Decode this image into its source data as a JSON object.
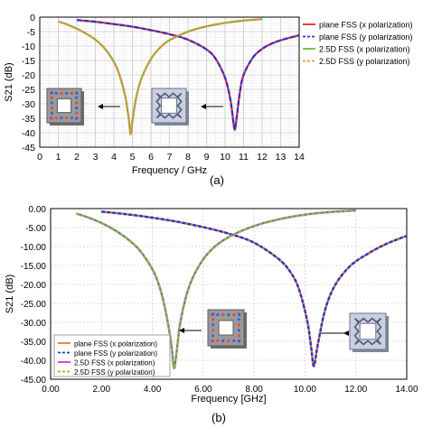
{
  "figure": {
    "caption_a": "(a)",
    "caption_b": "(b)"
  },
  "chart_data": [
    {
      "type": "line",
      "panel": "a",
      "title": "",
      "xlabel": "Frequency / GHz",
      "ylabel": "S21 (dB)",
      "xlim": [
        0,
        14
      ],
      "ylim": [
        -45,
        0
      ],
      "xticks": [
        "0",
        "1",
        "2",
        "3",
        "4",
        "5",
        "6",
        "7",
        "8",
        "9",
        "10",
        "11",
        "12",
        "13",
        "14"
      ],
      "yticks": [
        "0",
        "-5",
        "-10",
        "-15",
        "-20",
        "-25",
        "-30",
        "-35",
        "-40",
        "-45"
      ],
      "grid": true,
      "legend_position": "right",
      "annotations": [
        "2.5D FSS unit cell inset with arrow",
        "plane FSS unit cell inset with arrow"
      ],
      "series": [
        {
          "name": "plane FSS (x polarization)",
          "color": "#e8242a",
          "dash": "solid",
          "x": [
            2.0,
            3.0,
            4.0,
            5.0,
            6.0,
            7.0,
            8.0,
            9.0,
            9.5,
            10.0,
            10.3,
            10.5,
            10.6,
            10.8,
            11.0,
            11.5,
            12.0,
            12.5,
            13.0,
            13.5,
            14.0
          ],
          "y": [
            -1.0,
            -1.6,
            -2.4,
            -3.3,
            -4.5,
            -5.9,
            -7.8,
            -11.2,
            -14.5,
            -21.0,
            -29.0,
            -38.5,
            -36.0,
            -26.0,
            -20.0,
            -14.0,
            -11.0,
            -9.2,
            -8.0,
            -7.1,
            -6.3
          ]
        },
        {
          "name": "plane FSS (y polarization)",
          "color": "#2035d8",
          "dash": "dashed",
          "x": [
            2.0,
            3.0,
            4.0,
            5.0,
            6.0,
            7.0,
            8.0,
            9.0,
            9.5,
            10.0,
            10.3,
            10.5,
            10.6,
            10.8,
            11.0,
            11.5,
            12.0,
            12.5,
            13.0,
            13.5,
            14.0
          ],
          "y": [
            -1.0,
            -1.6,
            -2.4,
            -3.3,
            -4.5,
            -5.9,
            -7.8,
            -11.2,
            -14.5,
            -21.0,
            -29.0,
            -38.5,
            -36.0,
            -26.0,
            -20.0,
            -14.0,
            -11.0,
            -9.2,
            -8.0,
            -7.1,
            -6.3
          ]
        },
        {
          "name": "2.5D FSS (x polarization)",
          "color": "#5fc23a",
          "dash": "solid",
          "x": [
            1.0,
            1.5,
            2.0,
            2.5,
            3.0,
            3.5,
            4.0,
            4.3,
            4.6,
            4.8,
            4.9,
            5.0,
            5.2,
            5.5,
            6.0,
            6.5,
            7.0,
            8.0,
            9.0,
            10.0,
            11.0,
            12.0
          ],
          "y": [
            -1.5,
            -2.6,
            -4.0,
            -5.7,
            -7.8,
            -10.8,
            -15.5,
            -20.0,
            -27.0,
            -35.0,
            -40.5,
            -36.0,
            -28.0,
            -21.0,
            -14.5,
            -10.5,
            -8.0,
            -5.0,
            -3.2,
            -2.0,
            -1.2,
            -0.7
          ]
        },
        {
          "name": "2.5D FSS (y polarization)",
          "color": "#f08a3c",
          "dash": "dashed",
          "x": [
            1.0,
            1.5,
            2.0,
            2.5,
            3.0,
            3.5,
            4.0,
            4.3,
            4.6,
            4.8,
            4.9,
            5.0,
            5.2,
            5.5,
            6.0,
            6.5,
            7.0,
            8.0,
            9.0,
            10.0,
            11.0,
            12.0
          ],
          "y": [
            -1.5,
            -2.6,
            -4.0,
            -5.7,
            -7.8,
            -10.8,
            -15.5,
            -20.0,
            -27.0,
            -35.0,
            -40.5,
            -36.0,
            -28.0,
            -21.0,
            -14.5,
            -10.5,
            -8.0,
            -5.0,
            -3.2,
            -2.0,
            -1.2,
            -0.7
          ]
        }
      ]
    },
    {
      "type": "line",
      "panel": "b",
      "title": "",
      "xlabel": "Frequency [GHz]",
      "ylabel": "S21 (dB)",
      "xlim": [
        0,
        14
      ],
      "ylim": [
        -45,
        0
      ],
      "xticks": [
        "0.00",
        "2.00",
        "4.00",
        "6.00",
        "8.00",
        "10.00",
        "12.00",
        "14.00"
      ],
      "yticks": [
        "0.00",
        "-5.00",
        "-10.00",
        "-15.00",
        "-20.00",
        "-25.00",
        "-30.00",
        "-35.00",
        "-40.00",
        "-45.00"
      ],
      "grid": true,
      "legend_position": "bottom-left",
      "annotations": [
        "2.5D FSS unit cell inset with arrow",
        "plane FSS unit cell inset with arrow"
      ],
      "series": [
        {
          "name": "plane FSS (x polarization)",
          "color": "#f07a2a",
          "dash": "solid",
          "x": [
            2.0,
            3.0,
            4.0,
            5.0,
            6.0,
            7.0,
            8.0,
            9.0,
            9.5,
            9.8,
            10.1,
            10.25,
            10.35,
            10.5,
            10.8,
            11.2,
            11.8,
            12.5,
            13.2,
            14.0
          ],
          "y": [
            -0.8,
            -1.5,
            -2.4,
            -3.5,
            -4.9,
            -6.6,
            -9.0,
            -13.5,
            -17.5,
            -22.0,
            -30.0,
            -37.0,
            -41.5,
            -36.0,
            -26.5,
            -20.0,
            -15.0,
            -11.8,
            -9.3,
            -7.2
          ]
        },
        {
          "name": "plane FSS (y polarization)",
          "color": "#2035d8",
          "dash": "dashed",
          "x": [
            2.0,
            3.0,
            4.0,
            5.0,
            6.0,
            7.0,
            8.0,
            9.0,
            9.5,
            9.8,
            10.1,
            10.25,
            10.35,
            10.5,
            10.8,
            11.2,
            11.8,
            12.5,
            13.2,
            14.0
          ],
          "y": [
            -0.8,
            -1.5,
            -2.4,
            -3.5,
            -4.9,
            -6.6,
            -9.0,
            -13.5,
            -17.5,
            -22.0,
            -30.0,
            -37.0,
            -41.5,
            -36.0,
            -26.5,
            -20.0,
            -15.0,
            -11.8,
            -9.3,
            -7.2
          ]
        },
        {
          "name": "2.5D FSS (x polarization)",
          "color": "#c83ad0",
          "dash": "solid",
          "x": [
            1.0,
            1.5,
            2.0,
            2.5,
            3.0,
            3.5,
            4.0,
            4.3,
            4.55,
            4.75,
            4.85,
            4.95,
            5.1,
            5.4,
            5.8,
            6.3,
            7.0,
            8.0,
            9.0,
            10.0,
            11.0,
            12.0
          ],
          "y": [
            -1.3,
            -2.4,
            -3.8,
            -5.6,
            -7.9,
            -11.0,
            -16.0,
            -21.0,
            -28.0,
            -36.0,
            -42.0,
            -38.0,
            -30.0,
            -21.5,
            -15.5,
            -11.0,
            -7.5,
            -4.6,
            -2.8,
            -1.6,
            -0.9,
            -0.5
          ]
        },
        {
          "name": "2.5D FSS (y polarization)",
          "color": "#66cc33",
          "dash": "dashed",
          "x": [
            1.0,
            1.5,
            2.0,
            2.5,
            3.0,
            3.5,
            4.0,
            4.3,
            4.55,
            4.75,
            4.85,
            4.95,
            5.1,
            5.4,
            5.8,
            6.3,
            7.0,
            8.0,
            9.0,
            10.0,
            11.0,
            12.0
          ],
          "y": [
            -1.3,
            -2.4,
            -3.8,
            -5.6,
            -7.9,
            -11.0,
            -16.0,
            -21.0,
            -28.0,
            -36.0,
            -42.0,
            -38.0,
            -30.0,
            -21.5,
            -15.5,
            -11.0,
            -7.5,
            -4.6,
            -2.8,
            -1.6,
            -0.9,
            -0.5
          ]
        }
      ]
    }
  ]
}
